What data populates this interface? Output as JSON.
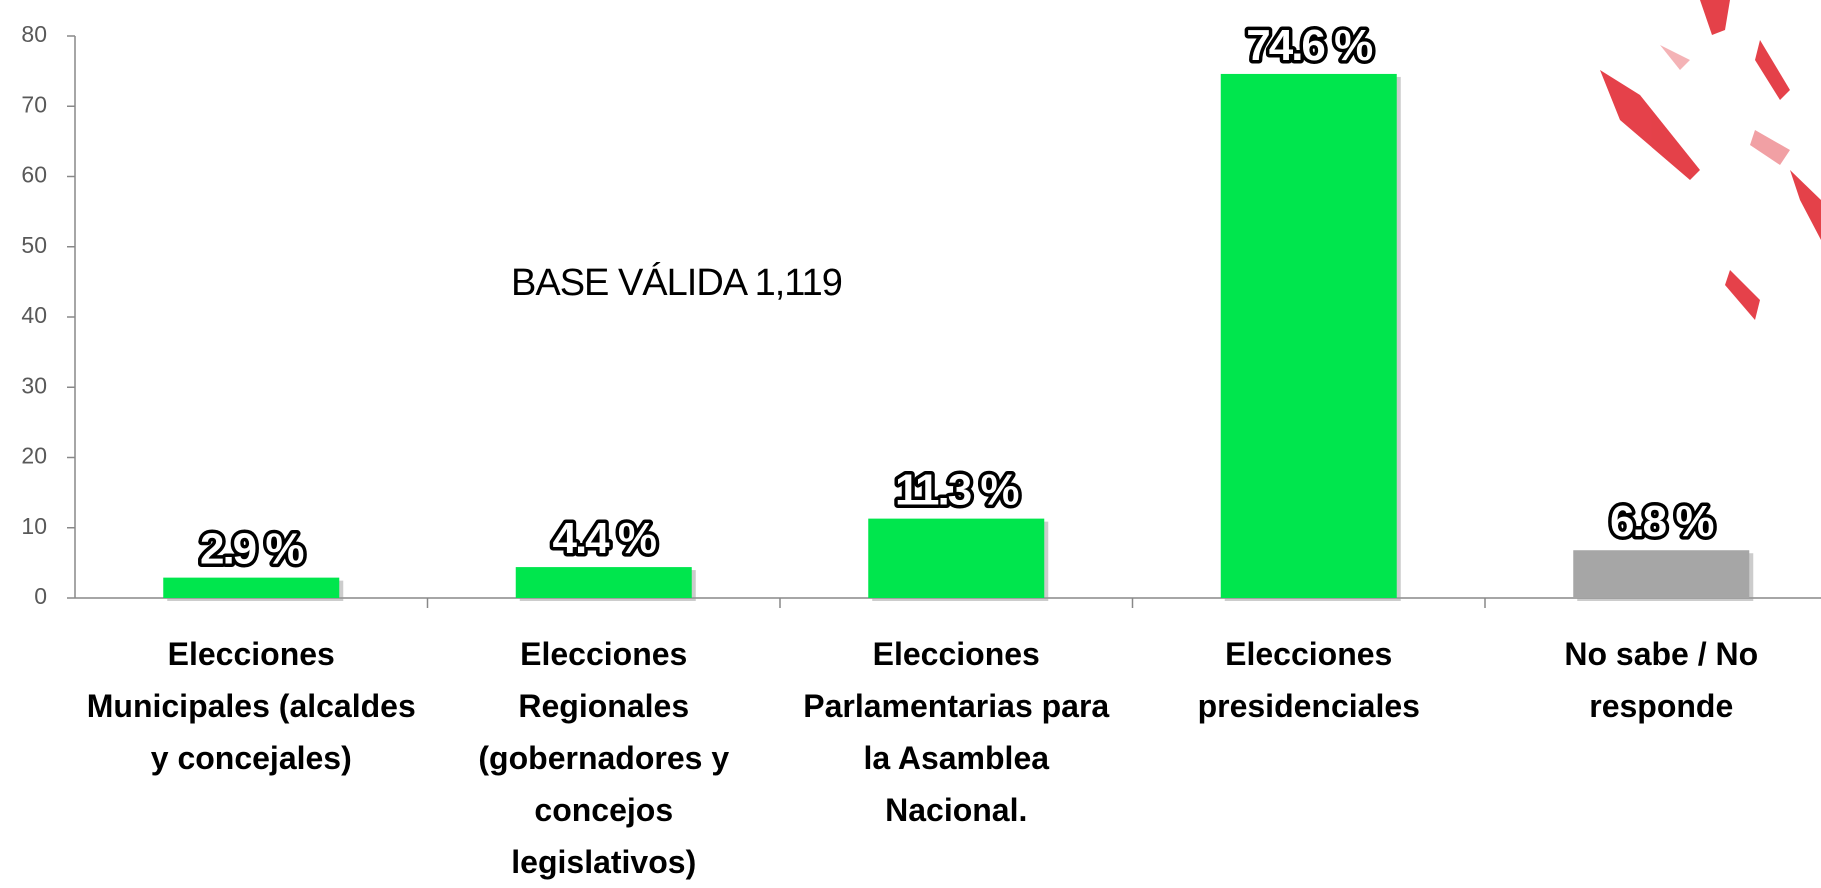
{
  "chart_data": {
    "type": "bar",
    "annotation": "BASE VÁLIDA 1,119",
    "categories": [
      "Elecciones Municipales (alcaldes y concejales)",
      "Elecciones Regionales (gobernadores y concejos legislativos)",
      "Elecciones Parlamentarias para la Asamblea Nacional.",
      "Elecciones presidenciales",
      "No sabe / No responde"
    ],
    "values": [
      2.9,
      4.4,
      11.3,
      74.6,
      6.8
    ],
    "value_labels": [
      "2.9 %",
      "4.4 %",
      "11.3 %",
      "74.6 %",
      "6.8 %"
    ],
    "colors": [
      "#00e64d",
      "#00e64d",
      "#00e64d",
      "#00e64d",
      "#a6a6a6"
    ],
    "ylim": [
      0,
      80
    ],
    "yticks": [
      0,
      10,
      20,
      30,
      40,
      50,
      60,
      70,
      80
    ],
    "grid": false
  }
}
